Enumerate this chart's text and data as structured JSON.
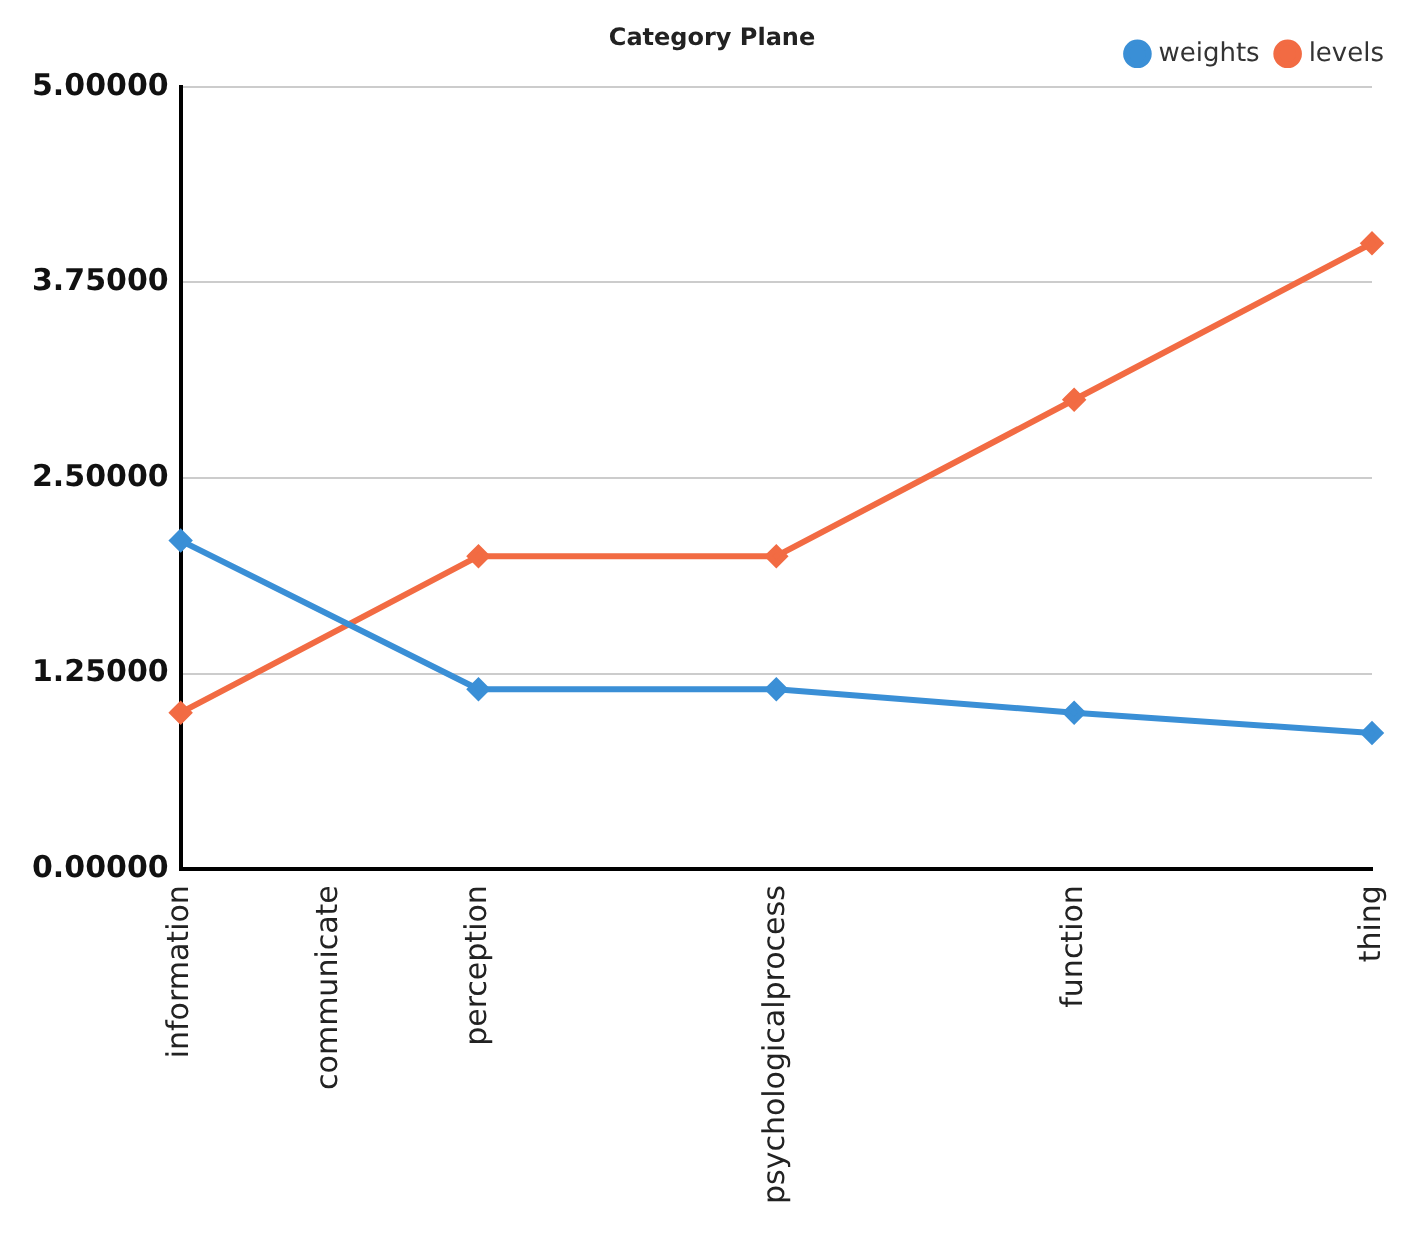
{
  "chart_data": {
    "type": "line",
    "title": "Category Plane",
    "categories": [
      "information",
      "communicate",
      "perception",
      null,
      "psychologicalprocess",
      null,
      "function",
      null,
      "thing"
    ],
    "series": [
      {
        "name": "weights",
        "color": "#3a8fd6",
        "values": [
          2.1,
          null,
          1.15,
          null,
          1.15,
          null,
          1.0,
          null,
          0.87
        ]
      },
      {
        "name": "levels",
        "color": "#f26b43",
        "values": [
          1.0,
          null,
          2.0,
          null,
          2.0,
          null,
          3.0,
          null,
          4.0
        ]
      }
    ],
    "ylim": [
      0,
      5
    ],
    "yticks": [
      {
        "value": 0,
        "label": "0.00000"
      },
      {
        "value": 1.25,
        "label": "1.25000"
      },
      {
        "value": 2.5,
        "label": "2.50000"
      },
      {
        "value": 3.75,
        "label": "3.75000"
      },
      {
        "value": 5,
        "label": "5.00000"
      }
    ],
    "grid": "y",
    "legend": "top right",
    "marker": "diamond"
  }
}
